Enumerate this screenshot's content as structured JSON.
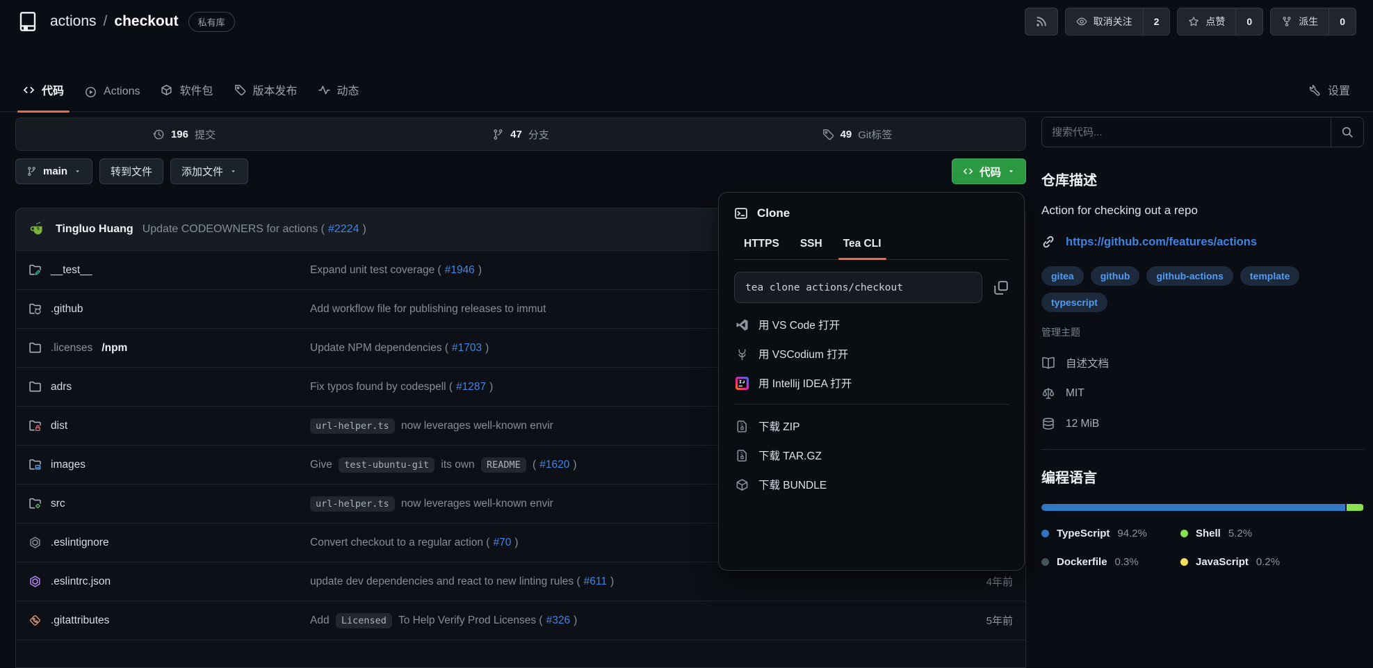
{
  "header": {
    "repo": {
      "owner": "actions",
      "slash": "/",
      "name": "checkout",
      "visibility": "私有库"
    },
    "buttons": {
      "unwatch": {
        "label": "取消关注",
        "count": "2"
      },
      "star": {
        "label": "点赞",
        "count": "0"
      },
      "fork": {
        "label": "派生",
        "count": "0"
      }
    }
  },
  "nav": {
    "tabs": [
      {
        "id": "code",
        "icon": "code-icon",
        "label": "代码",
        "active": true
      },
      {
        "id": "actions",
        "icon": "play-circle-icon",
        "label": "Actions"
      },
      {
        "id": "packages",
        "icon": "package-icon",
        "label": "软件包"
      },
      {
        "id": "releases",
        "icon": "tag-icon",
        "label": "版本发布"
      },
      {
        "id": "activity",
        "icon": "pulse-icon",
        "label": "动态"
      }
    ],
    "settings": {
      "icon": "wrench-icon",
      "label": "设置"
    }
  },
  "stats": [
    {
      "icon": "history-icon",
      "value": "196",
      "label": "提交"
    },
    {
      "icon": "branch-icon",
      "value": "47",
      "label": "分支"
    },
    {
      "icon": "tag-icon",
      "value": "49",
      "label": "Git标签"
    }
  ],
  "toolbar": {
    "branch": "main",
    "goto_file": "转到文件",
    "add_file": "添加文件",
    "code": "代码"
  },
  "commit_bar": {
    "author": "Tingluo Huang",
    "segments": [
      {
        "t": "text",
        "v": "Update CODEOWNERS for actions ("
      },
      {
        "t": "link",
        "v": "#2224"
      },
      {
        "t": "text",
        "v": ")"
      }
    ]
  },
  "files": [
    {
      "icon": "folder-test-icon",
      "name": [
        {
          "v": "__test__"
        }
      ],
      "msg": [
        {
          "t": "text",
          "v": "Expand unit test coverage ("
        },
        {
          "t": "link",
          "v": "#1946"
        },
        {
          "t": "text",
          "v": ")"
        }
      ],
      "date": ""
    },
    {
      "icon": "folder-github-icon",
      "name": [
        {
          "v": ".github"
        }
      ],
      "msg": [
        {
          "t": "text",
          "v": "Add workflow file for publishing releases to immut"
        }
      ],
      "date": ""
    },
    {
      "icon": "folder-icon",
      "name": [
        {
          "v": ".licenses",
          "dim": true
        },
        {
          "v": "/npm",
          "strong": true
        }
      ],
      "msg": [
        {
          "t": "text",
          "v": "Update NPM dependencies ("
        },
        {
          "t": "link",
          "v": "#1703"
        },
        {
          "t": "text",
          "v": ")"
        }
      ],
      "date": ""
    },
    {
      "icon": "folder-icon",
      "name": [
        {
          "v": "adrs"
        }
      ],
      "msg": [
        {
          "t": "text",
          "v": "Fix typos found by codespell ("
        },
        {
          "t": "link",
          "v": "#1287"
        },
        {
          "t": "text",
          "v": ")"
        }
      ],
      "date": ""
    },
    {
      "icon": "folder-lock-icon",
      "name": [
        {
          "v": "dist"
        }
      ],
      "msg": [
        {
          "t": "code",
          "v": "url-helper.ts"
        },
        {
          "t": "text",
          "v": " now leverages well-known envir"
        }
      ],
      "date": ""
    },
    {
      "icon": "folder-image-icon",
      "name": [
        {
          "v": "images"
        }
      ],
      "msg": [
        {
          "t": "text",
          "v": "Give "
        },
        {
          "t": "code",
          "v": "test-ubuntu-git"
        },
        {
          "t": "text",
          "v": " its own "
        },
        {
          "t": "code",
          "v": "README"
        },
        {
          "t": "text",
          "v": " ("
        },
        {
          "t": "link",
          "v": "#1620"
        },
        {
          "t": "text",
          "v": ")"
        }
      ],
      "date": ""
    },
    {
      "icon": "folder-code-icon",
      "name": [
        {
          "v": "src"
        }
      ],
      "msg": [
        {
          "t": "code",
          "v": "url-helper.ts"
        },
        {
          "t": "text",
          "v": " now leverages well-known envir"
        }
      ],
      "date": ""
    },
    {
      "icon": "eslint-icon",
      "name": [
        {
          "v": ".eslintignore"
        }
      ],
      "msg": [
        {
          "t": "text",
          "v": "Convert checkout to a regular action ("
        },
        {
          "t": "link",
          "v": "#70"
        },
        {
          "t": "text",
          "v": ")"
        }
      ],
      "date": ""
    },
    {
      "icon": "eslint-purple-icon",
      "name": [
        {
          "v": ".eslintrc.json"
        }
      ],
      "msg": [
        {
          "t": "text",
          "v": "update dev dependencies and react to new linting rules ("
        },
        {
          "t": "link",
          "v": "#611"
        },
        {
          "t": "text",
          "v": ")"
        }
      ],
      "date": "4年前"
    },
    {
      "icon": "git-diamond-icon",
      "name": [
        {
          "v": ".gitattributes"
        }
      ],
      "msg": [
        {
          "t": "text",
          "v": "Add "
        },
        {
          "t": "code",
          "v": "Licensed"
        },
        {
          "t": "text",
          "v": " To Help Verify Prod Licenses ("
        },
        {
          "t": "link",
          "v": "#326"
        },
        {
          "t": "text",
          "v": ")"
        }
      ],
      "date": "5年前"
    }
  ],
  "clone_panel": {
    "title": "Clone",
    "tabs": [
      {
        "label": "HTTPS"
      },
      {
        "label": "SSH"
      },
      {
        "label": "Tea CLI",
        "active": true
      }
    ],
    "command": "tea clone actions/checkout",
    "open_items": [
      {
        "icon": "vscode-icon",
        "label": "用 VS Code 打开"
      },
      {
        "icon": "vscodium-icon",
        "label": "用 VSCodium 打开"
      },
      {
        "icon": "intellij-icon",
        "label": "用 Intellij IDEA 打开"
      }
    ],
    "download_items": [
      {
        "icon": "zip-icon",
        "label": "下载 ZIP"
      },
      {
        "icon": "zip-icon",
        "label": "下载 TAR.GZ"
      },
      {
        "icon": "cube-icon",
        "label": "下载 BUNDLE"
      }
    ]
  },
  "sidebar": {
    "search_placeholder": "搜索代码...",
    "description_heading": "仓库描述",
    "description": "Action for checking out a repo",
    "website": "https://github.com/features/actions",
    "topics": [
      "gitea",
      "github",
      "github-actions",
      "template",
      "typescript"
    ],
    "manage_topics": "管理主题",
    "meta": [
      {
        "icon": "book-icon",
        "label": "自述文档"
      },
      {
        "icon": "law-icon",
        "label": "MIT"
      },
      {
        "icon": "database-icon",
        "label": "12 MiB"
      }
    ],
    "languages_heading": "编程语言"
  },
  "chart_data": {
    "type": "bar",
    "title": "编程语言",
    "series": [
      {
        "name": "TypeScript",
        "value": 94.2,
        "label": "94.2%",
        "color": "#3178c6"
      },
      {
        "name": "Shell",
        "value": 5.2,
        "label": "5.2%",
        "color": "#89e051"
      },
      {
        "name": "Dockerfile",
        "value": 0.3,
        "label": "0.3%",
        "color": "#46565e"
      },
      {
        "name": "JavaScript",
        "value": 0.2,
        "label": "0.2%",
        "color": "#f1e05a"
      }
    ],
    "legend_position": "bottom"
  }
}
